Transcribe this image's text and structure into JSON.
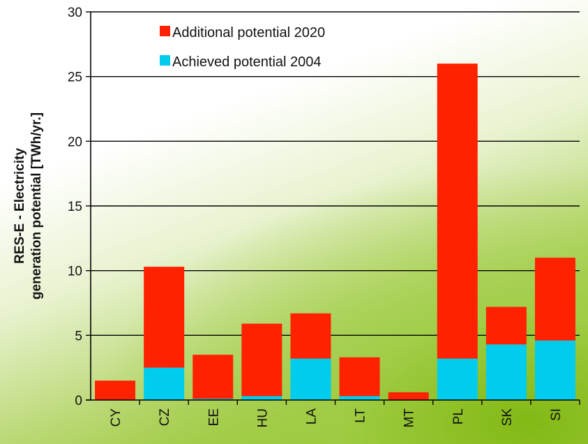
{
  "chart_data": {
    "type": "bar",
    "stacked": true,
    "categories": [
      "CY",
      "CZ",
      "EE",
      "HU",
      "LA",
      "LT",
      "MT",
      "PL",
      "SK",
      "SI"
    ],
    "series": [
      {
        "name": "Achieved potential 2004",
        "color": "#00ccee",
        "values": [
          0,
          2.5,
          0.1,
          0.3,
          3.2,
          0.3,
          0,
          3.2,
          4.3,
          4.6
        ]
      },
      {
        "name": "Additional potential 2020",
        "color": "#ff2200",
        "values": [
          1.5,
          7.8,
          3.4,
          5.6,
          3.5,
          3.0,
          0.6,
          22.8,
          2.9,
          6.4
        ]
      }
    ],
    "legend_order": [
      "Additional potential 2020",
      "Achieved potential 2004"
    ],
    "ylabel_lines": [
      "RES-E - Electricity",
      "generation potential [TWh/yr.]"
    ],
    "yticks": [
      0,
      5,
      10,
      15,
      20,
      25,
      30
    ],
    "ylim": [
      0,
      30
    ],
    "grid": true,
    "legend_position": "top-left"
  }
}
